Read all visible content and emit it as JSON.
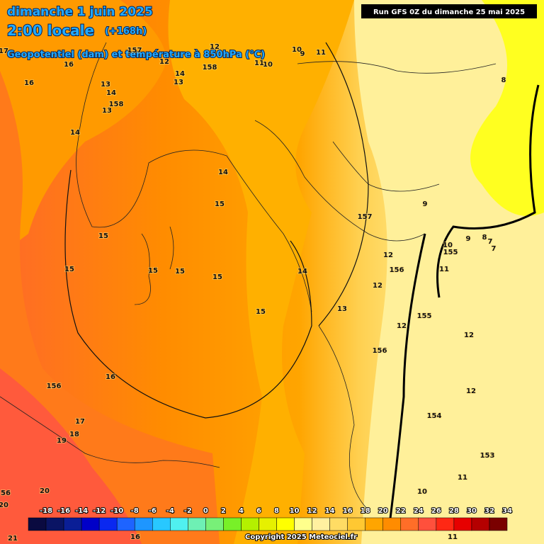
{
  "header": {
    "date": "dimanche 1 juin 2025",
    "time": "2:00 locale",
    "lead": "(+168h)",
    "subtitle": "Geopotentiel (dam) et température à 850hPa (°C)",
    "run": "Run GFS 0Z du dimanche 25 mai 2025"
  },
  "map": {
    "labels": [
      17,
      16,
      157,
      12,
      12,
      10,
      9,
      11,
      11,
      10,
      158,
      14,
      13,
      16,
      13,
      14,
      158,
      13,
      8,
      14,
      14,
      15,
      9,
      157,
      15,
      9,
      8,
      7,
      7,
      10,
      155,
      12,
      15,
      15,
      15,
      14,
      156,
      11,
      15,
      12,
      13,
      15,
      155,
      12,
      12,
      156,
      16,
      156,
      12,
      154,
      17,
      18,
      19,
      153,
      11,
      56,
      20,
      10,
      20,
      21,
      16,
      11
    ]
  },
  "legend": {
    "ticks": [
      -18,
      -16,
      -14,
      -12,
      -10,
      -8,
      -6,
      -4,
      -2,
      0,
      2,
      4,
      6,
      8,
      10,
      12,
      14,
      16,
      18,
      20,
      22,
      24,
      26,
      28,
      30,
      32,
      34
    ],
    "colors": [
      "#0a0a40",
      "#0a1464",
      "#0a1e96",
      "#0000c8",
      "#0a28f0",
      "#1e64ff",
      "#1e96ff",
      "#28c8ff",
      "#50f0f0",
      "#6ef0b4",
      "#78f078",
      "#78f028",
      "#b4f000",
      "#e6f000",
      "#ffff00",
      "#ffff8c",
      "#fff0a0",
      "#ffdc64",
      "#ffc832",
      "#ffa500",
      "#ff8c00",
      "#ff6e28",
      "#ff503c",
      "#ff2814",
      "#e60000",
      "#b40000",
      "#7a0000"
    ]
  },
  "footer": {
    "copyright": "Copyright 2025 Meteociel.fr"
  }
}
